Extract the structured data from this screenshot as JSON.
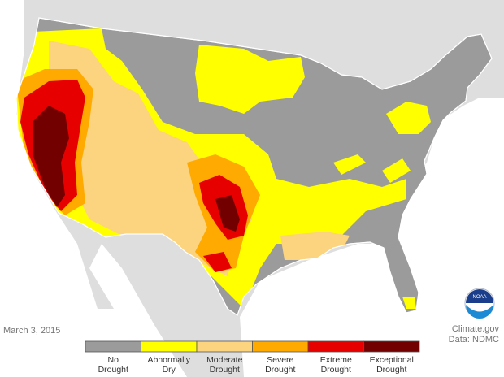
{
  "date": "March 3, 2015",
  "credit": "Climate.gov",
  "source": "Data: NDMC",
  "legend": [
    {
      "lines": [
        "No",
        "Drought"
      ],
      "color": "#9b9b9b"
    },
    {
      "lines": [
        "Abnormally",
        "Dry"
      ],
      "color": "#ffff00"
    },
    {
      "lines": [
        "Moderate",
        "Drought"
      ],
      "color": "#fcd37f"
    },
    {
      "lines": [
        "Severe",
        "Drought"
      ],
      "color": "#ffaa00"
    },
    {
      "lines": [
        "Extreme",
        "Drought"
      ],
      "color": "#e60000"
    },
    {
      "lines": [
        "Exceptional",
        "Drought"
      ],
      "color": "#730000"
    }
  ]
}
